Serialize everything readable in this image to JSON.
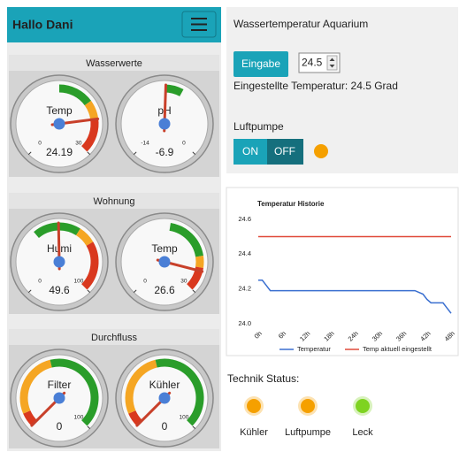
{
  "header": {
    "title": "Hallo Dani"
  },
  "gauge_panels": [
    {
      "title": "Wasserwerte",
      "gauges": [
        {
          "label": "Temp",
          "value": 24.19,
          "min": 0,
          "max": 30,
          "ticks": [
            0,
            30
          ],
          "bands": [
            {
              "from": 15,
              "to": 21,
              "color": "#2a9d2a"
            },
            {
              "from": 21,
              "to": 24,
              "color": "#f5a623"
            },
            {
              "from": 24,
              "to": 30,
              "color": "#d9381e"
            }
          ]
        },
        {
          "label": "pH",
          "value": -6.9,
          "min": -14,
          "max": 0,
          "ticks": [
            -14,
            0
          ],
          "bands": [
            {
              "from": -7,
              "to": -5.5,
              "color": "#2a9d2a"
            }
          ]
        }
      ]
    },
    {
      "title": "Wohnung",
      "gauges": [
        {
          "label": "Humi",
          "value": 49.6,
          "min": 0,
          "max": 100,
          "ticks": [
            0,
            100
          ],
          "bands": [
            {
              "from": 35,
              "to": 62,
              "color": "#2a9d2a"
            },
            {
              "from": 62,
              "to": 72,
              "color": "#f5a623"
            },
            {
              "from": 72,
              "to": 100,
              "color": "#d9381e"
            }
          ]
        },
        {
          "label": "Temp",
          "value": 26.6,
          "min": 0,
          "max": 30,
          "ticks": [
            0,
            30
          ],
          "bands": [
            {
              "from": 16,
              "to": 24,
              "color": "#2a9d2a"
            },
            {
              "from": 24,
              "to": 26,
              "color": "#f5a623"
            },
            {
              "from": 26,
              "to": 30,
              "color": "#d9381e"
            }
          ]
        }
      ]
    },
    {
      "title": "Durchfluss",
      "gauges": [
        {
          "label": "Filter",
          "value": 0,
          "min": 0,
          "max": 100,
          "ticks": [
            100
          ],
          "bands": [
            {
              "from": 0,
              "to": 8,
              "color": "#d9381e"
            },
            {
              "from": 8,
              "to": 45,
              "color": "#f5a623"
            },
            {
              "from": 45,
              "to": 100,
              "color": "#2a9d2a"
            }
          ]
        },
        {
          "label": "Kühler",
          "value": 0,
          "min": 0,
          "max": 100,
          "ticks": [
            100
          ],
          "bands": [
            {
              "from": 0,
              "to": 8,
              "color": "#d9381e"
            },
            {
              "from": 8,
              "to": 45,
              "color": "#f5a623"
            },
            {
              "from": 45,
              "to": 100,
              "color": "#2a9d2a"
            }
          ]
        }
      ]
    }
  ],
  "aquarium": {
    "title": "Wassertemperatur Aquarium",
    "button": "Eingabe",
    "input": 24.5,
    "set_text": "Eingestellte Temperatur: 24.5 Grad",
    "pump_label": "Luftpumpe",
    "on": "ON",
    "off": "OFF",
    "pump_color": "#f5a000"
  },
  "chart_data": {
    "type": "line",
    "title": "Temperatur Historie",
    "x": [
      0,
      1,
      2,
      3,
      6,
      12,
      18,
      24,
      30,
      36,
      39,
      41,
      42,
      43,
      44,
      45,
      46,
      47,
      48
    ],
    "xlim": [
      0,
      48
    ],
    "xticks": [
      {
        "value": 0,
        "label": "0h"
      },
      {
        "value": 6,
        "label": "6h"
      },
      {
        "value": 12,
        "label": "12h"
      },
      {
        "value": 18,
        "label": "18h"
      },
      {
        "value": 24,
        "label": "24h"
      },
      {
        "value": 30,
        "label": "30h"
      },
      {
        "value": 36,
        "label": "36h"
      },
      {
        "value": 42,
        "label": "42h"
      },
      {
        "value": 48,
        "label": "48h"
      }
    ],
    "ylim": [
      24,
      24.65
    ],
    "yticks": [
      {
        "value": 24,
        "label": "24.0"
      },
      {
        "value": 24.2,
        "label": "24.2"
      },
      {
        "value": 24.4,
        "label": "24.4"
      },
      {
        "value": 24.6,
        "label": "24.6"
      }
    ],
    "series": [
      {
        "name": "Temperatur",
        "color": "#3a6fd0",
        "values": [
          24.25,
          24.25,
          24.22,
          24.19,
          24.19,
          24.19,
          24.19,
          24.19,
          24.19,
          24.19,
          24.19,
          24.17,
          24.14,
          24.12,
          24.12,
          24.12,
          24.12,
          24.09,
          24.06
        ]
      },
      {
        "name": "Temp aktuell eingestellt",
        "color": "#e04a3a",
        "values": [
          24.5,
          24.5,
          24.5,
          24.5,
          24.5,
          24.5,
          24.5,
          24.5,
          24.5,
          24.5,
          24.5,
          24.5,
          24.5,
          24.5,
          24.5,
          24.5,
          24.5,
          24.5,
          24.5
        ]
      }
    ]
  },
  "status": {
    "title": "Technik Status:",
    "items": [
      {
        "label": "Kühler",
        "color": "#f5a000"
      },
      {
        "label": "Luftpumpe",
        "color": "#f5a000"
      },
      {
        "label": "Leck",
        "color": "#7ed321"
      }
    ]
  }
}
